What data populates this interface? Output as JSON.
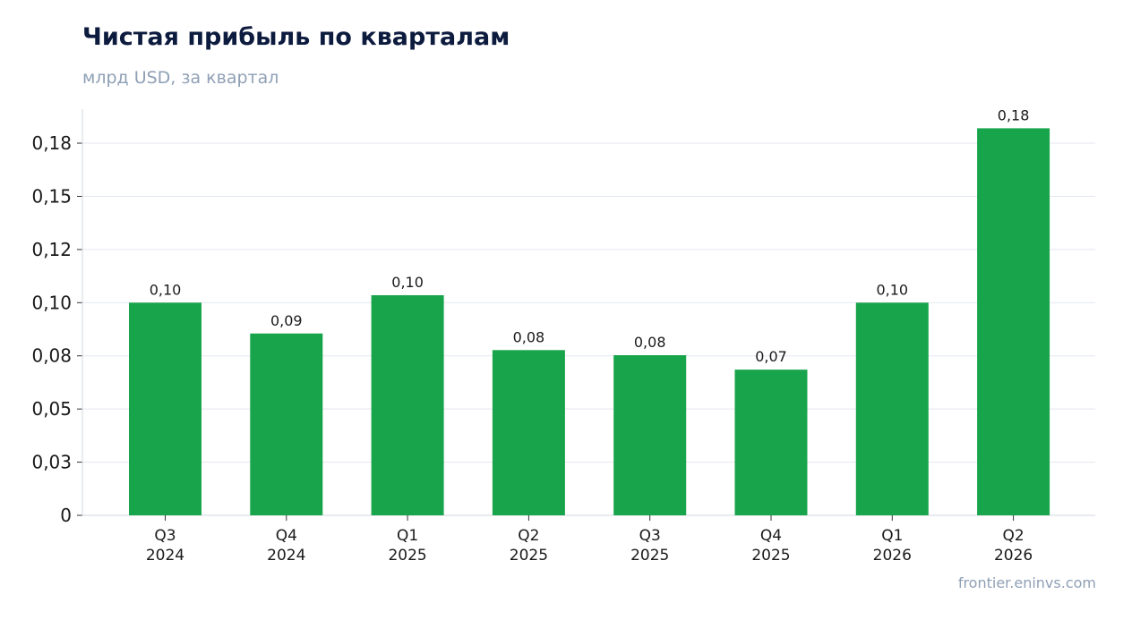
{
  "header": {
    "title": "Чистая прибыль по кварталам",
    "subtitle": "млрд USD, за квартал"
  },
  "footer": {
    "source": "frontier.eninvs.com"
  },
  "colors": {
    "bar": "#18a44b",
    "title": "#0d1b3e",
    "muted": "#8fa0b5"
  },
  "chart_data": {
    "type": "bar",
    "title": "Чистая прибыль по кварталам",
    "subtitle": "млрд USD, за квартал",
    "categories": [
      [
        "Q3",
        "2024"
      ],
      [
        "Q4",
        "2024"
      ],
      [
        "Q1",
        "2025"
      ],
      [
        "Q2",
        "2025"
      ],
      [
        "Q3",
        "2025"
      ],
      [
        "Q4",
        "2025"
      ],
      [
        "Q1",
        "2026"
      ],
      [
        "Q2",
        "2026"
      ]
    ],
    "values": [
      0.1,
      0.0855,
      0.1035,
      0.0777,
      0.0753,
      0.0685,
      0.1,
      0.182
    ],
    "data_labels": [
      "0,10",
      "0,09",
      "0,10",
      "0,08",
      "0,08",
      "0,07",
      "0,10",
      "0,18"
    ],
    "y_ticks": [
      {
        "value": 0,
        "label": "0"
      },
      {
        "value": 0.025,
        "label": "0,03"
      },
      {
        "value": 0.05,
        "label": "0,05"
      },
      {
        "value": 0.075,
        "label": "0,08"
      },
      {
        "value": 0.1,
        "label": "0,10"
      },
      {
        "value": 0.125,
        "label": "0,12"
      },
      {
        "value": 0.15,
        "label": "0,15"
      },
      {
        "value": 0.175,
        "label": "0,18"
      }
    ],
    "ylim": [
      0,
      0.191
    ],
    "grid": true,
    "legend": "none"
  }
}
